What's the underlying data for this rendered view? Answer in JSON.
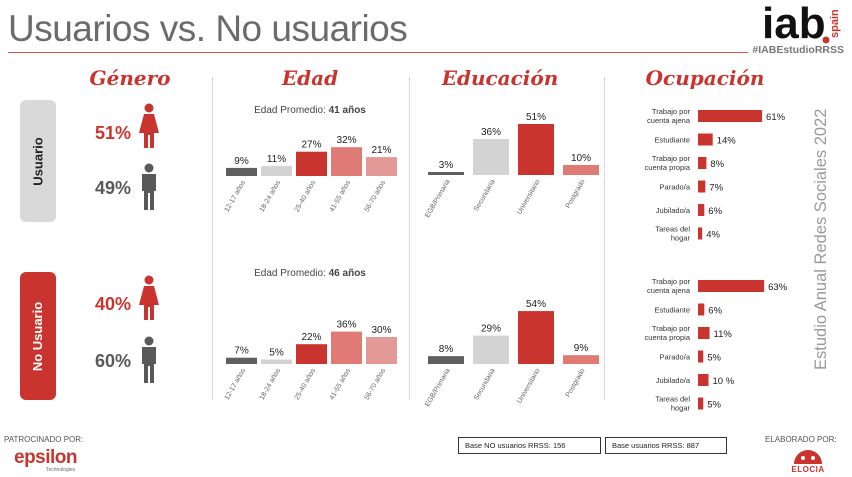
{
  "header": {
    "title": "Usuarios vs. No usuarios",
    "logo_text": "iab",
    "logo_sub": "spain",
    "hashtag": "#IABEstudioRRSS"
  },
  "sections": {
    "genero": "Género",
    "edad": "Edad",
    "educacion": "Educación",
    "ocupacion": "Ocupación"
  },
  "rows": {
    "usuario_label": "Usuario",
    "no_usuario_label": "No Usuario",
    "usuario_female_pct": "51%",
    "usuario_male_pct": "49%",
    "no_usuario_female_pct": "40%",
    "no_usuario_male_pct": "60%"
  },
  "avg_age": {
    "label": "Edad Promedio:",
    "usuario": "41 años",
    "no_usuario": "46 años"
  },
  "sidebar_text": "Estudio Anual Redes Sociales 2022",
  "footer": {
    "sponsor_label": "PATROCINADO POR:",
    "sponsor_logo": "epsilon",
    "sponsor_sub": "Technologies",
    "made_by_label": "ELABORADO POR:",
    "made_by_logo": "ELOCIA",
    "base_no_usuarios": "Base NO usuarios RRSS: 156",
    "base_usuarios": "Base usuarios RRSS: 887"
  },
  "colors": {
    "red": "#c9342e",
    "light_red": "#e39a96",
    "dark_gray": "#5f5f5f",
    "light_gray": "#d3d3d3",
    "gray_label": "#d9d9d9"
  },
  "chart_data": [
    {
      "type": "bar",
      "id": "edad_usuario",
      "categories": [
        "12-17 años",
        "18-24 años",
        "25-40 años",
        "41-55 años",
        "56-70 años"
      ],
      "values": [
        9,
        11,
        27,
        32,
        21
      ],
      "labels": [
        "9%",
        "11%",
        "27%",
        "32%",
        "21%"
      ],
      "colors": [
        "#5f5f5f",
        "#d3d3d3",
        "#c9342e",
        "#e07a74",
        "#e39a96"
      ]
    },
    {
      "type": "bar",
      "id": "edad_no_usuario",
      "categories": [
        "12-17 años",
        "18-24 años",
        "25-40 años",
        "41-55 años",
        "56-70 años"
      ],
      "values": [
        7,
        5,
        22,
        36,
        30
      ],
      "labels": [
        "7%",
        "5%",
        "22%",
        "36%",
        "30%"
      ],
      "colors": [
        "#5f5f5f",
        "#d3d3d3",
        "#c9342e",
        "#e07a74",
        "#e39a96"
      ]
    },
    {
      "type": "bar",
      "id": "educacion_usuario",
      "categories": [
        "EGB/Primaria",
        "Secundaria",
        "Universitario",
        "Postgrado"
      ],
      "values": [
        3,
        36,
        51,
        10
      ],
      "labels": [
        "3%",
        "36%",
        "51%",
        "10%"
      ],
      "colors": [
        "#5f5f5f",
        "#d3d3d3",
        "#c9342e",
        "#e07a74"
      ]
    },
    {
      "type": "bar",
      "id": "educacion_no_usuario",
      "categories": [
        "EGB/Primaria",
        "Secundaria",
        "Universitario",
        "Postgrado"
      ],
      "values": [
        8,
        29,
        54,
        9
      ],
      "labels": [
        "8%",
        "29%",
        "54%",
        "9%"
      ],
      "colors": [
        "#5f5f5f",
        "#d3d3d3",
        "#c9342e",
        "#e07a74"
      ]
    },
    {
      "type": "bar",
      "orientation": "horizontal",
      "id": "ocupacion_usuario",
      "categories": [
        "Trabajo por cuenta ajena",
        "Estudiante",
        "Trabajo por cuenta propia",
        "Parado/a",
        "Jubilado/a",
        "Tareas del hogar"
      ],
      "values": [
        61,
        14,
        8,
        7,
        6,
        4
      ],
      "labels": [
        "61%",
        "14%",
        "8%",
        "7%",
        "6%",
        "4%"
      ]
    },
    {
      "type": "bar",
      "orientation": "horizontal",
      "id": "ocupacion_no_usuario",
      "categories": [
        "Trabajo por cuenta ajena",
        "Estudiante",
        "Trabajo por cuenta propia",
        "Parado/a",
        "Jubilado/a",
        "Tareas del hogar"
      ],
      "values": [
        63,
        6,
        11,
        5,
        10,
        5
      ],
      "labels": [
        "63%",
        "6%",
        "11%",
        "5%",
        "10 %",
        "5%"
      ]
    }
  ]
}
